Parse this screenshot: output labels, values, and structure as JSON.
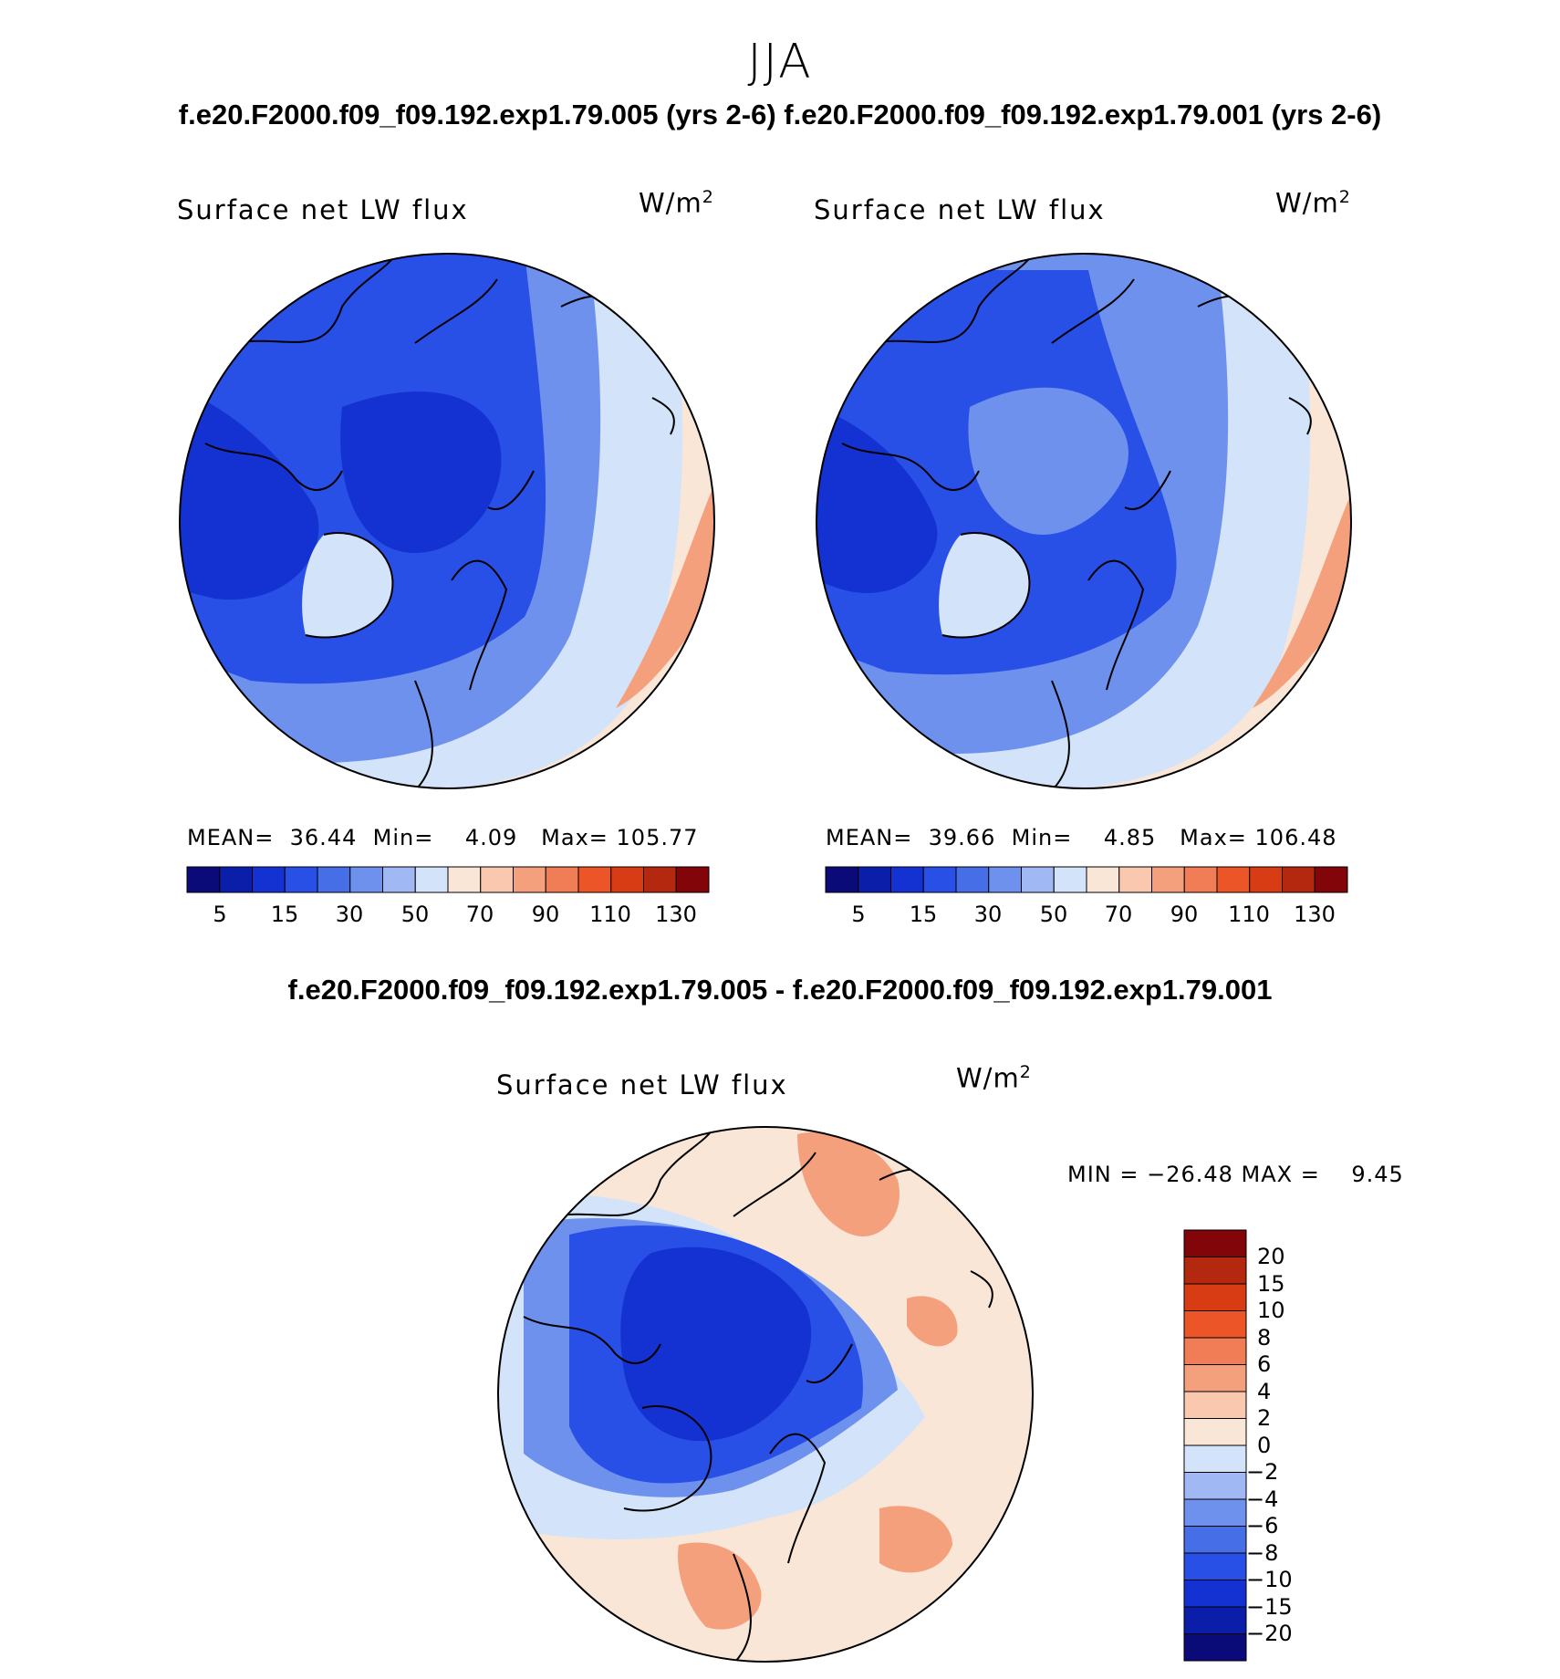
{
  "header": {
    "season": "JJA",
    "top_title": "f.e20.F2000.f09_f09.192.exp1.79.005 (yrs 2-6) f.e20.F2000.f09_f09.192.exp1.79.001 (yrs 2-6)",
    "diff_title": "f.e20.F2000.f09_f09.192.exp1.79.005 - f.e20.F2000.f09_f09.192.exp1.79.001"
  },
  "panels": [
    {
      "variable": "Surface net LW flux",
      "units_base": "W/m",
      "units_exp": "2",
      "mean_label": "MEAN=",
      "mean": "36.44",
      "min_label": "Min=",
      "min": "4.09",
      "max_label": "Max=",
      "max": "105.77"
    },
    {
      "variable": "Surface net LW flux",
      "units_base": "W/m",
      "units_exp": "2",
      "mean_label": "MEAN=",
      "mean": "39.66",
      "min_label": "Min=",
      "min": "4.85",
      "max_label": "Max=",
      "max": "106.48"
    }
  ],
  "diff_panel": {
    "variable": "Surface net LW flux",
    "units_base": "W/m",
    "units_exp": "2",
    "minmax_text": "MIN = −26.48 MAX =    9.45"
  },
  "colorbar_main": {
    "labels": [
      "5",
      "15",
      "30",
      "50",
      "70",
      "90",
      "110",
      "130"
    ],
    "colors": [
      "#0a0a78",
      "#0a1eaa",
      "#1432d2",
      "#2850e6",
      "#466ee6",
      "#6e91ee",
      "#a0b9f5",
      "#d2e3fa",
      "#fae6d7",
      "#fac8af",
      "#f5a07d",
      "#f07d55",
      "#eb5528",
      "#d73c14",
      "#b42810",
      "#82050a"
    ]
  },
  "colorbar_diff": {
    "labels": [
      "20",
      "15",
      "10",
      "8",
      "6",
      "4",
      "2",
      "0",
      "−2",
      "−4",
      "−6",
      "−8",
      "−10",
      "−15",
      "−20"
    ],
    "colors": [
      "#82050a",
      "#b42810",
      "#d73c14",
      "#eb5528",
      "#f07d55",
      "#f5a07d",
      "#fac8af",
      "#fae6d7",
      "#d2e3fa",
      "#a0b9f5",
      "#6e91ee",
      "#466ee6",
      "#2850e6",
      "#1432d2",
      "#0a1eaa",
      "#0a0a78"
    ]
  },
  "map_colors": {
    "deep_blue": "#1432d2",
    "mid_blue": "#2850e6",
    "light_blue": "#6e91ee",
    "pale_blue": "#d2e3fa",
    "cream": "#fae6d7",
    "peach": "#f5a07d",
    "red": "#eb5528"
  }
}
